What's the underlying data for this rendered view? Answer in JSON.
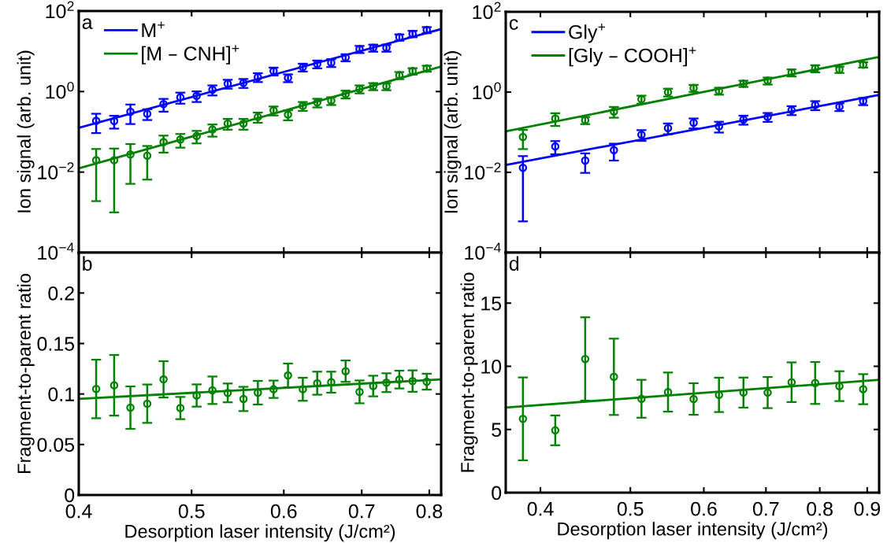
{
  "chart_data": [
    {
      "type": "scatter",
      "log": "xy",
      "marker": "circle",
      "grid": false,
      "legend": "top left",
      "tick_labels": "y",
      "ylabel": "Ion signal (arb. unit)",
      "annotations": [
        "a"
      ],
      "x": [
        0.414,
        0.429,
        0.443,
        0.458,
        0.473,
        0.489,
        0.505,
        0.521,
        0.537,
        0.554,
        0.57,
        0.588,
        0.605,
        0.623,
        0.641,
        0.659,
        0.678,
        0.697,
        0.716,
        0.735,
        0.754,
        0.774,
        0.796
      ],
      "xlim": [
        0.4,
        0.819
      ],
      "xticks": [
        0.4,
        0.5,
        0.6,
        0.7,
        0.8
      ],
      "ylim": [
        0.0001,
        100
      ],
      "yticks": [
        {
          "value": 0.0001,
          "label": "10$^{−4}$"
        },
        {
          "value": 0.01,
          "label": "10$^{−2}$"
        },
        {
          "value": 1,
          "label": "10$^{0}$"
        },
        {
          "value": 100,
          "label": "10$^{2}$"
        }
      ],
      "series": [
        {
          "color": "#0000ff",
          "values": [
            0.187,
            0.185,
            0.316,
            0.28,
            0.487,
            0.72,
            0.78,
            1.11,
            1.57,
            1.64,
            2.29,
            3.22,
            2.19,
            4.03,
            4.83,
            5.21,
            7.04,
            11.3,
            12.2,
            12.2,
            22.3,
            27.2,
            34.0
          ],
          "errors": [
            0.094,
            0.065,
            0.16,
            0.084,
            0.17,
            0.22,
            0.23,
            0.31,
            0.39,
            0.41,
            0.57,
            0.71,
            0.48,
            0.89,
            1.06,
            1.15,
            1.41,
            2.26,
            2.44,
            2.44,
            4.0,
            4.9,
            5.8
          ]
        },
        {
          "color": "#008000",
          "values": [
            0.0197,
            0.0197,
            0.0274,
            0.0255,
            0.0555,
            0.0644,
            0.0785,
            0.114,
            0.161,
            0.161,
            0.234,
            0.34,
            0.268,
            0.44,
            0.533,
            0.593,
            0.862,
            1.16,
            1.35,
            1.35,
            2.54,
            3.22,
            3.75
          ],
          "errors": [
            0.0178,
            0.0187,
            0.0223,
            0.019,
            0.025,
            0.024,
            0.027,
            0.038,
            0.048,
            0.048,
            0.066,
            0.085,
            0.075,
            0.11,
            0.13,
            0.13,
            0.19,
            0.26,
            0.27,
            0.27,
            0.51,
            0.58,
            0.64
          ]
        },
        {
          "type": "line",
          "marker": "none",
          "name": "M$^{+}$",
          "color": "#0000ff",
          "x": [
            0.4,
            0.819
          ],
          "values": [
            0.126,
            35.6
          ]
        },
        {
          "type": "line",
          "marker": "none",
          "name": "[M – CNH]$^{+}$",
          "color": "#008000",
          "x": [
            0.4,
            0.819
          ],
          "values": [
            0.0124,
            4.16
          ]
        }
      ]
    },
    {
      "type": "scatter",
      "log": "x",
      "marker": "circle",
      "grid": false,
      "xlabel": "Desorption laser intensity (J/cm²)",
      "ylabel": "Fragment-to-parent ratio",
      "annotations": [
        "b"
      ],
      "x": [
        0.414,
        0.429,
        0.443,
        0.458,
        0.473,
        0.489,
        0.505,
        0.521,
        0.537,
        0.554,
        0.57,
        0.588,
        0.605,
        0.623,
        0.641,
        0.659,
        0.678,
        0.697,
        0.716,
        0.735,
        0.754,
        0.774,
        0.796
      ],
      "xlim": [
        0.4,
        0.819
      ],
      "xticks": [
        0.4,
        0.5,
        0.6,
        0.7,
        0.8
      ],
      "ylim": [
        0,
        0.24
      ],
      "yticks": [
        0,
        0.05,
        0.1,
        0.15,
        0.2
      ],
      "series": [
        {
          "color": "#008000",
          "values": [
            0.105,
            0.1086,
            0.0865,
            0.0904,
            0.1145,
            0.0861,
            0.0985,
            0.1037,
            0.1011,
            0.0951,
            0.1013,
            0.1047,
            0.1184,
            0.1047,
            0.1107,
            0.1117,
            0.1226,
            0.1021,
            0.1079,
            0.1112,
            0.1143,
            0.1128,
            0.1122
          ],
          "errors": [
            0.029,
            0.03,
            0.021,
            0.019,
            0.018,
            0.011,
            0.011,
            0.0136,
            0.0093,
            0.012,
            0.0117,
            0.0086,
            0.0118,
            0.0114,
            0.0114,
            0.0104,
            0.0106,
            0.0113,
            0.0102,
            0.0093,
            0.0088,
            0.0106,
            0.0079
          ]
        },
        {
          "type": "line",
          "marker": "none",
          "color": "#008000",
          "x": [
            0.4,
            0.819
          ],
          "values": [
            0.0951,
            0.1145
          ]
        }
      ]
    },
    {
      "type": "scatter",
      "log": "xy",
      "marker": "circle",
      "grid": false,
      "legend": "top left",
      "tick_labels": "y",
      "ylabel": "Ion signal (arb. unit)",
      "annotations": [
        "c"
      ],
      "x": [
        0.383,
        0.415,
        0.447,
        0.48,
        0.514,
        0.549,
        0.585,
        0.623,
        0.662,
        0.703,
        0.746,
        0.791,
        0.84,
        0.891
      ],
      "xlim": [
        0.367,
        0.927
      ],
      "xticks": [
        0.4,
        0.5,
        0.6,
        0.7,
        0.8,
        0.9
      ],
      "ylim": [
        0.0001,
        100
      ],
      "yticks": [
        {
          "value": 0.0001,
          "label": "10$^{−4}$"
        },
        {
          "value": 0.01,
          "label": "10$^{−2}$"
        },
        {
          "value": 1,
          "label": "10$^{0}$"
        },
        {
          "value": 100,
          "label": "10$^{2}$"
        }
      ],
      "series": [
        {
          "color": "#0000ff",
          "values": [
            0.013,
            0.0441,
            0.0197,
            0.0357,
            0.0866,
            0.127,
            0.172,
            0.14,
            0.206,
            0.241,
            0.356,
            0.474,
            0.431,
            0.593
          ],
          "errors": [
            0.0124,
            0.016,
            0.01,
            0.016,
            0.026,
            0.038,
            0.048,
            0.042,
            0.052,
            0.06,
            0.089,
            0.12,
            0.095,
            0.12
          ]
        },
        {
          "color": "#008000",
          "values": [
            0.076,
            0.22,
            0.199,
            0.328,
            0.664,
            0.995,
            1.26,
            1.07,
            1.63,
            1.92,
            3.06,
            3.89,
            3.65,
            4.8
          ],
          "errors": [
            0.038,
            0.077,
            0.04,
            0.098,
            0.15,
            0.22,
            0.25,
            0.21,
            0.29,
            0.38,
            0.61,
            0.78,
            0.66,
            0.72
          ]
        },
        {
          "type": "line",
          "marker": "none",
          "name": "Gly$^{+}$",
          "color": "#0000ff",
          "x": [
            0.367,
            0.927
          ],
          "values": [
            0.0153,
            0.847
          ]
        },
        {
          "type": "line",
          "marker": "none",
          "name": "[Gly – COOH]$^{+}$",
          "color": "#008000",
          "x": [
            0.367,
            0.927
          ],
          "values": [
            0.105,
            7.53
          ]
        }
      ]
    },
    {
      "type": "scatter",
      "log": "x",
      "marker": "circle",
      "grid": false,
      "xlabel": "Desorption laser intensity (J/cm²)",
      "ylabel": "Fragment-to-parent ratio",
      "annotations": [
        "d"
      ],
      "x": [
        0.383,
        0.415,
        0.447,
        0.48,
        0.514,
        0.549,
        0.585,
        0.623,
        0.662,
        0.703,
        0.746,
        0.791,
        0.84,
        0.891
      ],
      "xlim": [
        0.367,
        0.927
      ],
      "xticks": [
        0.4,
        0.5,
        0.6,
        0.7,
        0.8,
        0.9
      ],
      "ylim": [
        0,
        19
      ],
      "yticks": [
        0,
        5,
        10,
        15
      ],
      "series": [
        {
          "color": "#008000",
          "values": [
            5.84,
            4.93,
            10.58,
            9.17,
            7.43,
            7.96,
            7.41,
            7.74,
            7.92,
            7.92,
            8.74,
            8.68,
            8.43,
            8.19
          ],
          "errors": [
            3.28,
            1.18,
            3.3,
            3.02,
            1.5,
            1.55,
            1.25,
            1.36,
            1.19,
            1.23,
            1.57,
            1.66,
            1.18,
            1.19
          ]
        },
        {
          "type": "line",
          "marker": "none",
          "color": "#008000",
          "x": [
            0.367,
            0.927
          ],
          "values": [
            6.74,
            8.93
          ]
        }
      ]
    }
  ]
}
